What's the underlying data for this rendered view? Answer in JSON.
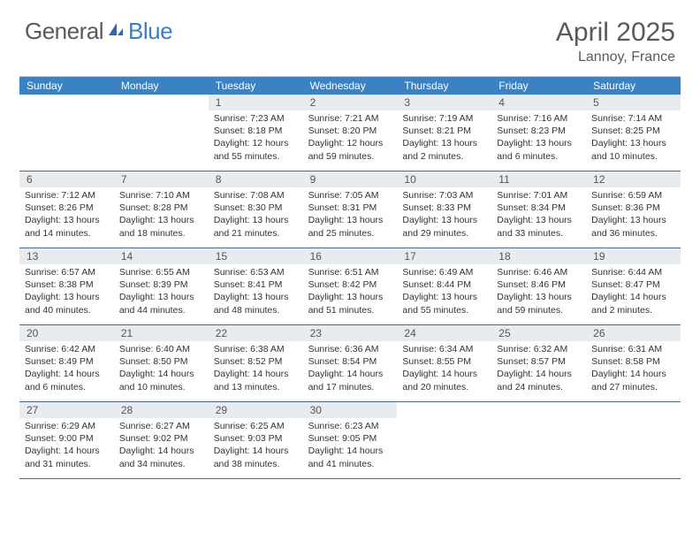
{
  "brand": {
    "part1": "General",
    "part2": "Blue"
  },
  "title": "April 2025",
  "location": "Lannoy, France",
  "colors": {
    "header_bg": "#3b82c4",
    "header_text": "#ffffff",
    "daynum_bg": "#e8ecef",
    "border": "#4a6a8a",
    "body_text": "#333333",
    "logo_gray": "#5a5a5a",
    "logo_blue": "#3b7fc4"
  },
  "day_names": [
    "Sunday",
    "Monday",
    "Tuesday",
    "Wednesday",
    "Thursday",
    "Friday",
    "Saturday"
  ],
  "weeks": [
    [
      {
        "n": "",
        "sr": "",
        "ss": "",
        "dl": ""
      },
      {
        "n": "",
        "sr": "",
        "ss": "",
        "dl": ""
      },
      {
        "n": "1",
        "sr": "Sunrise: 7:23 AM",
        "ss": "Sunset: 8:18 PM",
        "dl": "Daylight: 12 hours and 55 minutes."
      },
      {
        "n": "2",
        "sr": "Sunrise: 7:21 AM",
        "ss": "Sunset: 8:20 PM",
        "dl": "Daylight: 12 hours and 59 minutes."
      },
      {
        "n": "3",
        "sr": "Sunrise: 7:19 AM",
        "ss": "Sunset: 8:21 PM",
        "dl": "Daylight: 13 hours and 2 minutes."
      },
      {
        "n": "4",
        "sr": "Sunrise: 7:16 AM",
        "ss": "Sunset: 8:23 PM",
        "dl": "Daylight: 13 hours and 6 minutes."
      },
      {
        "n": "5",
        "sr": "Sunrise: 7:14 AM",
        "ss": "Sunset: 8:25 PM",
        "dl": "Daylight: 13 hours and 10 minutes."
      }
    ],
    [
      {
        "n": "6",
        "sr": "Sunrise: 7:12 AM",
        "ss": "Sunset: 8:26 PM",
        "dl": "Daylight: 13 hours and 14 minutes."
      },
      {
        "n": "7",
        "sr": "Sunrise: 7:10 AM",
        "ss": "Sunset: 8:28 PM",
        "dl": "Daylight: 13 hours and 18 minutes."
      },
      {
        "n": "8",
        "sr": "Sunrise: 7:08 AM",
        "ss": "Sunset: 8:30 PM",
        "dl": "Daylight: 13 hours and 21 minutes."
      },
      {
        "n": "9",
        "sr": "Sunrise: 7:05 AM",
        "ss": "Sunset: 8:31 PM",
        "dl": "Daylight: 13 hours and 25 minutes."
      },
      {
        "n": "10",
        "sr": "Sunrise: 7:03 AM",
        "ss": "Sunset: 8:33 PM",
        "dl": "Daylight: 13 hours and 29 minutes."
      },
      {
        "n": "11",
        "sr": "Sunrise: 7:01 AM",
        "ss": "Sunset: 8:34 PM",
        "dl": "Daylight: 13 hours and 33 minutes."
      },
      {
        "n": "12",
        "sr": "Sunrise: 6:59 AM",
        "ss": "Sunset: 8:36 PM",
        "dl": "Daylight: 13 hours and 36 minutes."
      }
    ],
    [
      {
        "n": "13",
        "sr": "Sunrise: 6:57 AM",
        "ss": "Sunset: 8:38 PM",
        "dl": "Daylight: 13 hours and 40 minutes."
      },
      {
        "n": "14",
        "sr": "Sunrise: 6:55 AM",
        "ss": "Sunset: 8:39 PM",
        "dl": "Daylight: 13 hours and 44 minutes."
      },
      {
        "n": "15",
        "sr": "Sunrise: 6:53 AM",
        "ss": "Sunset: 8:41 PM",
        "dl": "Daylight: 13 hours and 48 minutes."
      },
      {
        "n": "16",
        "sr": "Sunrise: 6:51 AM",
        "ss": "Sunset: 8:42 PM",
        "dl": "Daylight: 13 hours and 51 minutes."
      },
      {
        "n": "17",
        "sr": "Sunrise: 6:49 AM",
        "ss": "Sunset: 8:44 PM",
        "dl": "Daylight: 13 hours and 55 minutes."
      },
      {
        "n": "18",
        "sr": "Sunrise: 6:46 AM",
        "ss": "Sunset: 8:46 PM",
        "dl": "Daylight: 13 hours and 59 minutes."
      },
      {
        "n": "19",
        "sr": "Sunrise: 6:44 AM",
        "ss": "Sunset: 8:47 PM",
        "dl": "Daylight: 14 hours and 2 minutes."
      }
    ],
    [
      {
        "n": "20",
        "sr": "Sunrise: 6:42 AM",
        "ss": "Sunset: 8:49 PM",
        "dl": "Daylight: 14 hours and 6 minutes."
      },
      {
        "n": "21",
        "sr": "Sunrise: 6:40 AM",
        "ss": "Sunset: 8:50 PM",
        "dl": "Daylight: 14 hours and 10 minutes."
      },
      {
        "n": "22",
        "sr": "Sunrise: 6:38 AM",
        "ss": "Sunset: 8:52 PM",
        "dl": "Daylight: 14 hours and 13 minutes."
      },
      {
        "n": "23",
        "sr": "Sunrise: 6:36 AM",
        "ss": "Sunset: 8:54 PM",
        "dl": "Daylight: 14 hours and 17 minutes."
      },
      {
        "n": "24",
        "sr": "Sunrise: 6:34 AM",
        "ss": "Sunset: 8:55 PM",
        "dl": "Daylight: 14 hours and 20 minutes."
      },
      {
        "n": "25",
        "sr": "Sunrise: 6:32 AM",
        "ss": "Sunset: 8:57 PM",
        "dl": "Daylight: 14 hours and 24 minutes."
      },
      {
        "n": "26",
        "sr": "Sunrise: 6:31 AM",
        "ss": "Sunset: 8:58 PM",
        "dl": "Daylight: 14 hours and 27 minutes."
      }
    ],
    [
      {
        "n": "27",
        "sr": "Sunrise: 6:29 AM",
        "ss": "Sunset: 9:00 PM",
        "dl": "Daylight: 14 hours and 31 minutes."
      },
      {
        "n": "28",
        "sr": "Sunrise: 6:27 AM",
        "ss": "Sunset: 9:02 PM",
        "dl": "Daylight: 14 hours and 34 minutes."
      },
      {
        "n": "29",
        "sr": "Sunrise: 6:25 AM",
        "ss": "Sunset: 9:03 PM",
        "dl": "Daylight: 14 hours and 38 minutes."
      },
      {
        "n": "30",
        "sr": "Sunrise: 6:23 AM",
        "ss": "Sunset: 9:05 PM",
        "dl": "Daylight: 14 hours and 41 minutes."
      },
      {
        "n": "",
        "sr": "",
        "ss": "",
        "dl": ""
      },
      {
        "n": "",
        "sr": "",
        "ss": "",
        "dl": ""
      },
      {
        "n": "",
        "sr": "",
        "ss": "",
        "dl": ""
      }
    ]
  ]
}
